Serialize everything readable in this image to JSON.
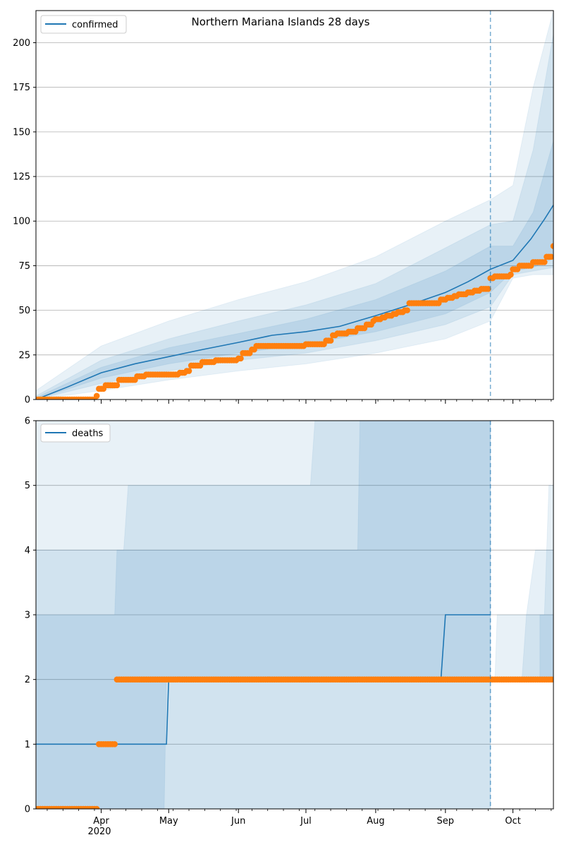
{
  "title": "Northern Mariana Islands 28 days",
  "colors": {
    "model_line": "#1f77b4",
    "observed": "#ff7f0e",
    "band": "#1f77b4",
    "grid": "#b0b0b0",
    "vline": "#1f77b4"
  },
  "chart_data": [
    {
      "type": "line",
      "panel": "top",
      "title": "Northern Mariana Islands 28 days",
      "legend": {
        "position": "top-left",
        "label": "confirmed"
      },
      "grid": "horizontal",
      "x_range": [
        "2020-03-03",
        "2020-10-19"
      ],
      "ylim": [
        0,
        218
      ],
      "yticks": [
        "0",
        "25",
        "50",
        "75",
        "100",
        "125",
        "150",
        "175",
        "200"
      ],
      "forecast_start": "2020-09-21",
      "model_confirmed": [
        [
          "2020-03-03",
          0
        ],
        [
          "2020-03-17",
          7
        ],
        [
          "2020-04-01",
          15
        ],
        [
          "2020-04-16",
          20
        ],
        [
          "2020-05-01",
          24
        ],
        [
          "2020-05-16",
          28
        ],
        [
          "2020-06-01",
          32
        ],
        [
          "2020-06-16",
          36
        ],
        [
          "2020-07-01",
          38
        ],
        [
          "2020-07-16",
          41
        ],
        [
          "2020-08-01",
          47
        ],
        [
          "2020-08-16",
          53
        ],
        [
          "2020-09-01",
          60
        ],
        [
          "2020-09-11",
          66
        ],
        [
          "2020-09-21",
          73
        ],
        [
          "2020-10-01",
          78
        ],
        [
          "2020-10-09",
          90
        ],
        [
          "2020-10-15",
          101
        ],
        [
          "2020-10-19",
          109
        ]
      ],
      "bands_confirmed": [
        {
          "level": "inner",
          "points": [
            [
              "2020-03-03",
              0,
              1
            ],
            [
              "2020-04-01",
              12,
              18
            ],
            [
              "2020-05-01",
              20,
              29
            ],
            [
              "2020-06-01",
              26,
              37
            ],
            [
              "2020-07-01",
              31,
              45
            ],
            [
              "2020-08-01",
              38,
              56
            ],
            [
              "2020-09-01",
              48,
              72
            ],
            [
              "2020-09-21",
              60,
              86
            ],
            [
              "2020-10-01",
              72,
              86
            ],
            [
              "2020-10-10",
              74,
              105
            ],
            [
              "2020-10-19",
              79,
              145
            ]
          ]
        },
        {
          "level": "middle",
          "points": [
            [
              "2020-03-03",
              0,
              2
            ],
            [
              "2020-04-01",
              9,
              22
            ],
            [
              "2020-05-01",
              16,
              34
            ],
            [
              "2020-06-01",
              22,
              44
            ],
            [
              "2020-07-01",
              26,
              53
            ],
            [
              "2020-08-01",
              33,
              65
            ],
            [
              "2020-09-01",
              42,
              85
            ],
            [
              "2020-09-21",
              52,
              98
            ],
            [
              "2020-10-01",
              70,
              100
            ],
            [
              "2020-10-10",
              72,
              140
            ],
            [
              "2020-10-19",
              74,
              205
            ]
          ]
        },
        {
          "level": "outer",
          "points": [
            [
              "2020-03-03",
              0,
              5
            ],
            [
              "2020-04-01",
              5,
              30
            ],
            [
              "2020-05-01",
              11,
              44
            ],
            [
              "2020-06-01",
              16,
              56
            ],
            [
              "2020-07-01",
              20,
              66
            ],
            [
              "2020-08-01",
              26,
              80
            ],
            [
              "2020-09-01",
              34,
              100
            ],
            [
              "2020-09-21",
              44,
              112
            ],
            [
              "2020-10-01",
              68,
              120
            ],
            [
              "2020-10-10",
              70,
              175
            ],
            [
              "2020-10-19",
              70,
              218
            ]
          ]
        }
      ],
      "observed_confirmed_steps": [
        [
          "2020-03-03",
          0
        ],
        [
          "2020-03-30",
          2
        ],
        [
          "2020-03-31",
          6
        ],
        [
          "2020-04-03",
          8
        ],
        [
          "2020-04-09",
          11
        ],
        [
          "2020-04-17",
          13
        ],
        [
          "2020-04-21",
          14
        ],
        [
          "2020-05-06",
          15
        ],
        [
          "2020-05-09",
          16
        ],
        [
          "2020-05-11",
          19
        ],
        [
          "2020-05-16",
          21
        ],
        [
          "2020-05-22",
          22
        ],
        [
          "2020-06-01",
          23
        ],
        [
          "2020-06-03",
          26
        ],
        [
          "2020-06-07",
          28
        ],
        [
          "2020-06-09",
          30
        ],
        [
          "2020-07-01",
          31
        ],
        [
          "2020-07-10",
          33
        ],
        [
          "2020-07-13",
          36
        ],
        [
          "2020-07-15",
          37
        ],
        [
          "2020-07-20",
          38
        ],
        [
          "2020-07-24",
          40
        ],
        [
          "2020-07-28",
          42
        ],
        [
          "2020-07-31",
          44
        ],
        [
          "2020-08-01",
          45
        ],
        [
          "2020-08-04",
          46
        ],
        [
          "2020-08-06",
          47
        ],
        [
          "2020-08-09",
          48
        ],
        [
          "2020-08-11",
          49
        ],
        [
          "2020-08-14",
          50
        ],
        [
          "2020-08-16",
          54
        ],
        [
          "2020-08-30",
          56
        ],
        [
          "2020-09-02",
          57
        ],
        [
          "2020-09-05",
          58
        ],
        [
          "2020-09-07",
          59
        ],
        [
          "2020-09-11",
          60
        ],
        [
          "2020-09-14",
          61
        ],
        [
          "2020-09-17",
          62
        ],
        [
          "2020-09-21",
          68
        ],
        [
          "2020-09-23",
          69
        ],
        [
          "2020-09-30",
          70
        ],
        [
          "2020-10-01",
          73
        ],
        [
          "2020-10-04",
          75
        ],
        [
          "2020-10-10",
          77
        ],
        [
          "2020-10-16",
          80
        ],
        [
          "2020-10-19",
          86
        ]
      ]
    },
    {
      "type": "line",
      "panel": "bottom",
      "legend": {
        "position": "top-left",
        "label": "deaths"
      },
      "grid": "horizontal",
      "x_range": [
        "2020-03-03",
        "2020-10-19"
      ],
      "ylim": [
        0,
        6
      ],
      "yticks": [
        "0",
        "1",
        "2",
        "3",
        "4",
        "5",
        "6"
      ],
      "xticks": [
        {
          "date": "2020-04-01",
          "label": "Apr"
        },
        {
          "date": "2020-05-01",
          "label": "May"
        },
        {
          "date": "2020-06-01",
          "label": "Jun"
        },
        {
          "date": "2020-07-01",
          "label": "Jul"
        },
        {
          "date": "2020-08-01",
          "label": "Aug"
        },
        {
          "date": "2020-09-01",
          "label": "Sep"
        },
        {
          "date": "2020-10-01",
          "label": "Oct"
        }
      ],
      "year_label": "2020",
      "forecast_start": "2020-09-21",
      "model_deaths": [
        [
          "2020-03-03",
          1
        ],
        [
          "2020-04-30",
          1
        ],
        [
          "2020-05-01",
          2
        ],
        [
          "2020-08-30",
          2
        ],
        [
          "2020-09-01",
          3
        ],
        [
          "2020-09-21",
          3
        ]
      ],
      "bands_deaths": [
        {
          "level": "inner",
          "points": [
            [
              "2020-03-03",
              0,
              3
            ],
            [
              "2020-04-07",
              0,
              3
            ],
            [
              "2020-04-08",
              0,
              4
            ],
            [
              "2020-04-29",
              0,
              4
            ],
            [
              "2020-04-30",
              2,
              4
            ],
            [
              "2020-07-24",
              2,
              4
            ],
            [
              "2020-07-25",
              2,
              6
            ],
            [
              "2020-09-21",
              2,
              6
            ]
          ]
        },
        {
          "level": "middle",
          "points": [
            [
              "2020-03-03",
              0,
              4
            ],
            [
              "2020-04-11",
              0,
              4
            ],
            [
              "2020-04-13",
              0,
              5
            ],
            [
              "2020-07-03",
              0,
              5
            ],
            [
              "2020-07-05",
              0,
              6
            ],
            [
              "2020-09-21",
              0,
              6
            ]
          ]
        },
        {
          "level": "outer",
          "points": [
            [
              "2020-03-03",
              0,
              6
            ],
            [
              "2020-09-21",
              0,
              6
            ]
          ]
        }
      ],
      "bands_deaths_forecast": [
        {
          "level": "inner",
          "points": [
            [
              "2020-10-13",
              2,
              3
            ],
            [
              "2020-10-19",
              2,
              3
            ]
          ]
        },
        {
          "level": "middle",
          "points": [
            [
              "2020-10-05",
              2,
              2
            ],
            [
              "2020-10-07",
              2,
              3
            ],
            [
              "2020-10-11",
              2,
              4
            ],
            [
              "2020-10-19",
              2,
              4
            ]
          ]
        },
        {
          "level": "outer",
          "points": [
            [
              "2020-09-23",
              2,
              2
            ],
            [
              "2020-09-24",
              2,
              3
            ],
            [
              "2020-10-15",
              2,
              3
            ],
            [
              "2020-10-17",
              2,
              5
            ],
            [
              "2020-10-19",
              2,
              5
            ]
          ]
        }
      ],
      "observed_deaths_steps": [
        [
          "2020-03-03",
          0
        ],
        [
          "2020-03-31",
          1
        ],
        [
          "2020-04-08",
          2
        ],
        [
          "2020-10-19",
          2
        ]
      ]
    }
  ]
}
